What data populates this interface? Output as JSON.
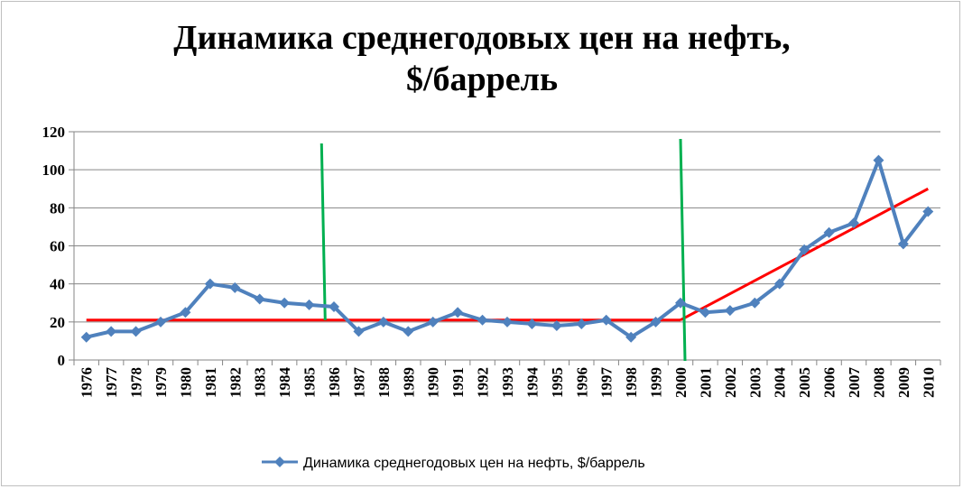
{
  "chart_data": {
    "type": "line",
    "title": [
      "Динамика среднегодовых цен на нефть,",
      "$/баррель"
    ],
    "x": [
      "1976",
      "1977",
      "1978",
      "1979",
      "1980",
      "1981",
      "1982",
      "1983",
      "1984",
      "1985",
      "1986",
      "1987",
      "1988",
      "1989",
      "1990",
      "1991",
      "1992",
      "1993",
      "1994",
      "1995",
      "1996",
      "1997",
      "1998",
      "1999",
      "2000",
      "2001",
      "2002",
      "2003",
      "2004",
      "2005",
      "2006",
      "2007",
      "2008",
      "2009",
      "2010"
    ],
    "series": [
      {
        "name": "Динамика среднегодовых цен на нефть, $/баррель",
        "color": "#4f81bd",
        "marker": "diamond",
        "values": [
          12,
          15,
          15,
          20,
          25,
          40,
          38,
          32,
          30,
          29,
          28,
          15,
          20,
          15,
          20,
          25,
          21,
          20,
          19,
          18,
          19,
          21,
          12,
          20,
          30,
          25,
          26,
          30,
          40,
          58,
          67,
          72,
          105,
          61,
          78
        ]
      }
    ],
    "ylim": [
      0,
      120
    ],
    "yticks": [
      0,
      20,
      40,
      60,
      80,
      100,
      120
    ],
    "grid": true,
    "legend": "bottom",
    "annotations": {
      "vertical_lines": [
        {
          "color": "#00b050",
          "x": "1985.5"
        },
        {
          "color": "#00b050",
          "x": "2000"
        }
      ],
      "trend_lines": [
        {
          "color": "#ff0000",
          "from": {
            "x": "1976",
            "y": 21
          },
          "to": {
            "x": "2000",
            "y": 21
          }
        },
        {
          "color": "#ff0000",
          "from": {
            "x": "2000",
            "y": 21
          },
          "to": {
            "x": "2010",
            "y": 90
          }
        }
      ]
    }
  }
}
